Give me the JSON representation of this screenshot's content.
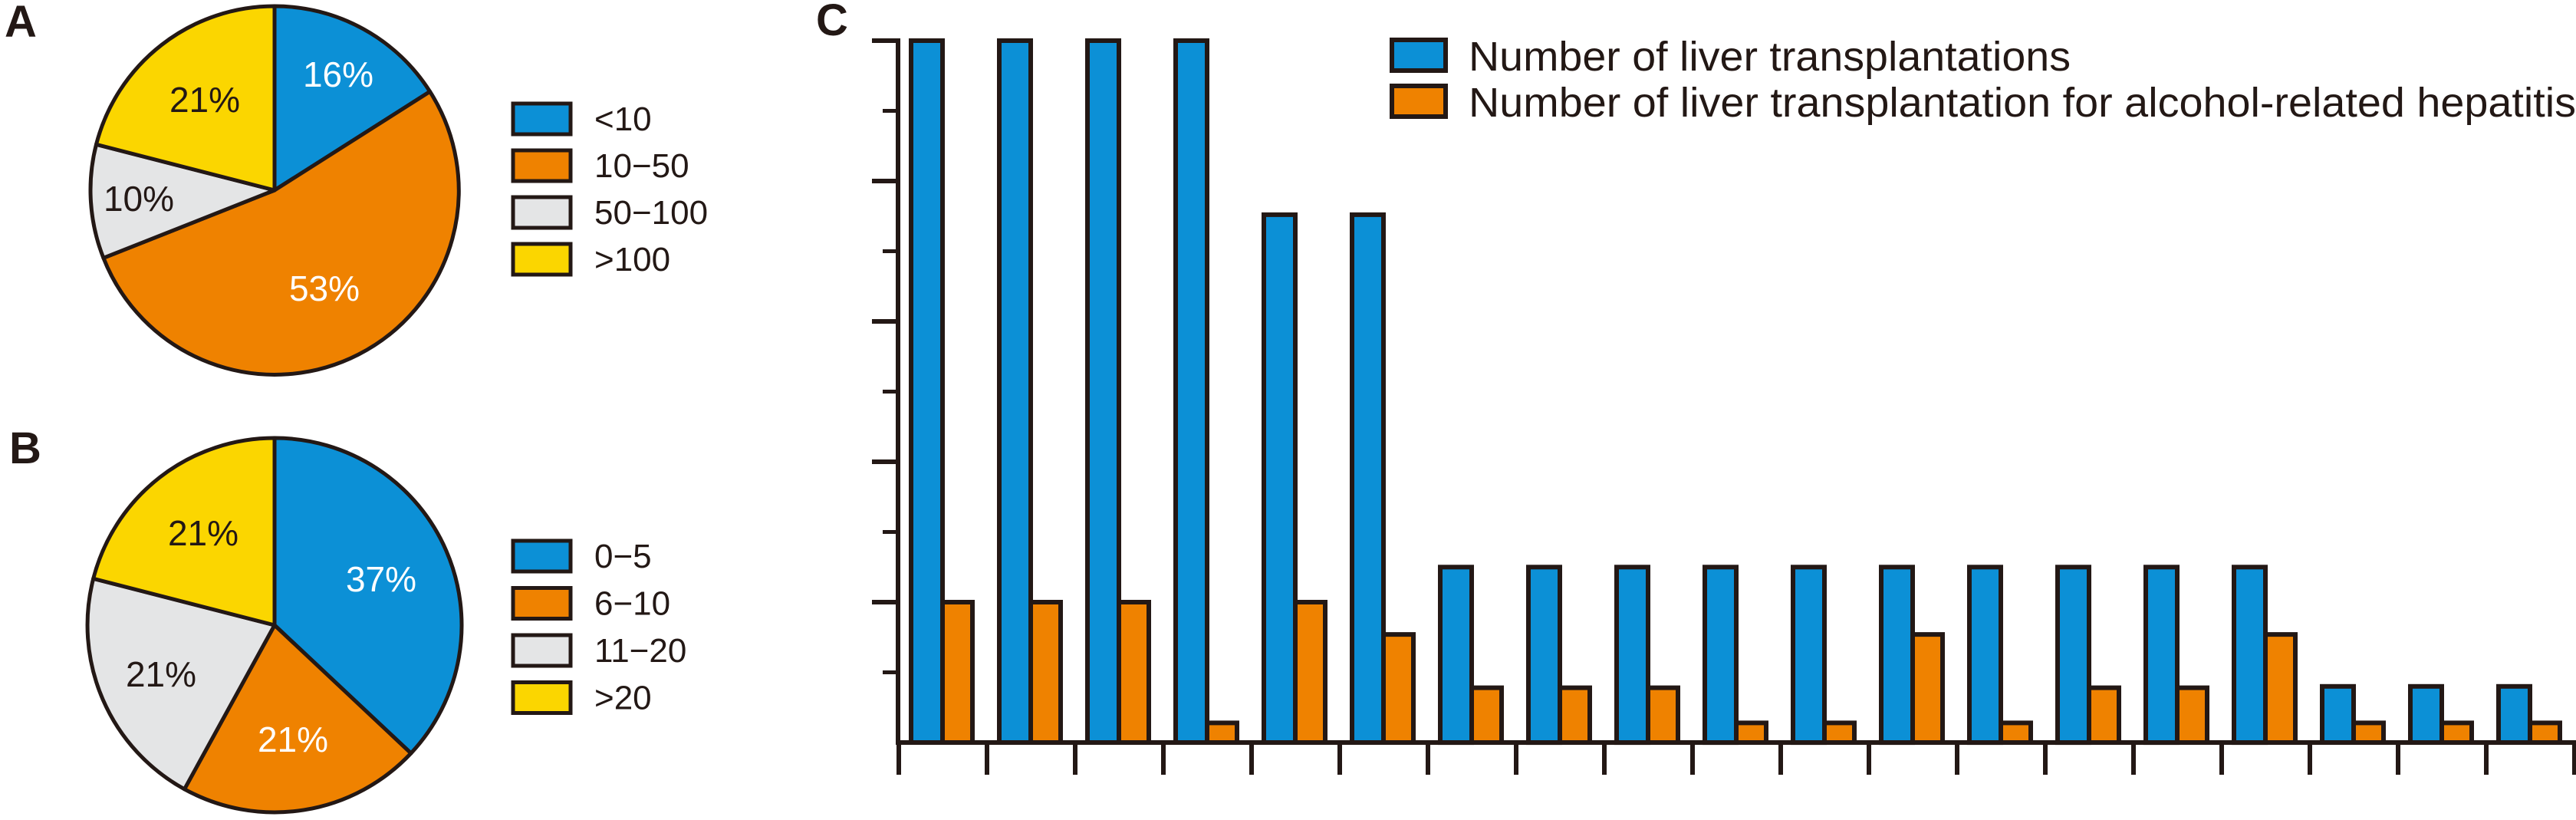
{
  "panels": {
    "a": {
      "label": "A"
    },
    "b": {
      "label": "B"
    },
    "c": {
      "label": "C"
    }
  },
  "colors": {
    "blue": "#0C90D6",
    "orange": "#EF8200",
    "gray": "#E4E5E6",
    "yellow": "#FBD600",
    "outline": "#231815",
    "label_on_dark": "#FFFFFF",
    "label_on_light": "#231815"
  },
  "chart_data": [
    {
      "id": "pie-a",
      "type": "pie",
      "panel": "A",
      "start": "12-oclock",
      "direction": "clockwise",
      "value_suffix": "%",
      "slices": [
        {
          "label": "<10",
          "value": 16,
          "color_key": "blue",
          "label_color": "#FFFFFF"
        },
        {
          "label": "10−50",
          "value": 53,
          "color_key": "orange",
          "label_color": "#FFFFFF"
        },
        {
          "label": "50−100",
          "value": 10,
          "color_key": "gray",
          "label_color": "#231815"
        },
        {
          "label": ">100",
          "value": 21,
          "color_key": "yellow",
          "label_color": "#231815"
        }
      ]
    },
    {
      "id": "pie-b",
      "type": "pie",
      "panel": "B",
      "start": "12-oclock",
      "direction": "clockwise",
      "value_suffix": "%",
      "slices": [
        {
          "label": "0−5",
          "value": 37,
          "color_key": "blue",
          "label_color": "#FFFFFF"
        },
        {
          "label": "6−10",
          "value": 21,
          "color_key": "orange",
          "label_color": "#FFFFFF"
        },
        {
          "label": "11−20",
          "value": 21,
          "color_key": "gray",
          "label_color": "#231815"
        },
        {
          "label": ">20",
          "value": 21,
          "color_key": "yellow",
          "label_color": "#231815"
        }
      ]
    },
    {
      "id": "bars-c",
      "type": "bar",
      "panel": "C",
      "n_groups": 19,
      "x_labels": [],
      "y_labels": [],
      "ylim": [
        0,
        5
      ],
      "y_axis_note": "5 unlabeled major divisions with one minor tick between each; bar values below are expressed in major-division units read from the axis",
      "grid": "off",
      "legend_position": "top-right",
      "series": [
        {
          "name": "Number of liver transplantations",
          "color_key": "blue",
          "values": [
            5,
            5,
            5,
            5,
            3.76,
            3.76,
            1.25,
            1.25,
            1.25,
            1.25,
            1.25,
            1.25,
            1.25,
            1.25,
            1.25,
            1.25,
            0.4,
            0.4,
            0.4
          ]
        },
        {
          "name": "Number of liver transplantation for alcohol-related hepatitis",
          "color_key": "orange",
          "values": [
            1,
            1,
            1,
            0.14,
            1,
            0.77,
            0.39,
            0.39,
            0.39,
            0.14,
            0.14,
            0.77,
            0.14,
            0.39,
            0.39,
            0.77,
            0.14,
            0.14,
            0.14
          ]
        }
      ]
    }
  ]
}
